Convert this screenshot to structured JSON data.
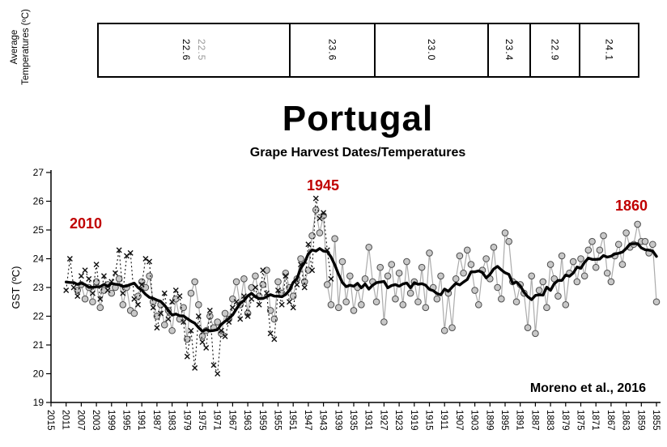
{
  "title": "Portugal",
  "avg_table": {
    "label_line1": "Average",
    "label_line2": "Temperatures (ºC)",
    "values": [
      "22.6",
      "22.5",
      "23.6",
      "23.0",
      "23.4",
      "22.9",
      "24.1"
    ]
  },
  "colors": {
    "annotation_red": "#c00000",
    "table_secondary_gray": "#999999",
    "series_line_gray": "#ababab",
    "marker_fill_gray": "#c8c8c8",
    "marker_stroke_gray": "#4d4d4d",
    "series_black": "#111111",
    "smooth_black": "#000000"
  },
  "chart_data": {
    "type": "line",
    "title": "Grape Harvest Dates/Temperatures",
    "xlabel": "",
    "ylabel": "GST (ºC)",
    "ylim": [
      19,
      27
    ],
    "x_reversed": true,
    "grid": false,
    "legend": "none",
    "y_ticks": [
      19,
      20,
      21,
      22,
      23,
      24,
      25,
      26,
      27
    ],
    "x_ticks": [
      2015,
      2011,
      2007,
      2003,
      1999,
      1995,
      1991,
      1987,
      1983,
      1979,
      1975,
      1971,
      1967,
      1963,
      1959,
      1955,
      1951,
      1947,
      1943,
      1939,
      1935,
      1931,
      1927,
      1923,
      1919,
      1915,
      1911,
      1907,
      1903,
      1899,
      1895,
      1891,
      1887,
      1883,
      1879,
      1875,
      1871,
      1867,
      1863,
      1859,
      1855
    ],
    "annotations": [
      {
        "text": "2010",
        "year": 2010
      },
      {
        "text": "1945",
        "year": 1945
      },
      {
        "text": "1860",
        "year": 1860
      }
    ],
    "credit": "Moreno et al., 2016",
    "smoothing": "9-year centered moving average (thick black line)",
    "series": [
      {
        "id": "observed-x",
        "marker": "x",
        "line": "dotted",
        "points": [
          [
            2011,
            22.9
          ],
          [
            2010,
            24.0
          ],
          [
            2009,
            23.0
          ],
          [
            2008,
            22.7
          ],
          [
            2007,
            23.4
          ],
          [
            2006,
            23.6
          ],
          [
            2005,
            23.3
          ],
          [
            2004,
            22.8
          ],
          [
            2003,
            23.8
          ],
          [
            2002,
            22.6
          ],
          [
            2001,
            23.4
          ],
          [
            2000,
            22.9
          ],
          [
            1999,
            23.2
          ],
          [
            1998,
            23.5
          ],
          [
            1997,
            24.3
          ],
          [
            1996,
            22.8
          ],
          [
            1995,
            24.1
          ],
          [
            1994,
            24.2
          ],
          [
            1993,
            22.6
          ],
          [
            1992,
            22.4
          ],
          [
            1991,
            23.1
          ],
          [
            1990,
            24.0
          ],
          [
            1989,
            23.9
          ],
          [
            1988,
            22.3
          ],
          [
            1987,
            21.6
          ],
          [
            1986,
            22.1
          ],
          [
            1985,
            22.8
          ],
          [
            1984,
            21.9
          ],
          [
            1983,
            22.5
          ],
          [
            1982,
            22.9
          ],
          [
            1981,
            22.7
          ],
          [
            1980,
            21.8
          ],
          [
            1979,
            20.6
          ],
          [
            1978,
            21.5
          ],
          [
            1977,
            20.2
          ],
          [
            1976,
            22.0
          ],
          [
            1975,
            21.1
          ],
          [
            1974,
            20.9
          ],
          [
            1973,
            22.2
          ],
          [
            1972,
            20.3
          ],
          [
            1971,
            20.0
          ],
          [
            1970,
            21.5
          ],
          [
            1969,
            21.3
          ],
          [
            1968,
            21.8
          ],
          [
            1967,
            22.3
          ],
          [
            1966,
            22.5
          ],
          [
            1965,
            21.9
          ],
          [
            1964,
            22.7
          ],
          [
            1963,
            22.0
          ],
          [
            1962,
            22.6
          ],
          [
            1961,
            23.0
          ],
          [
            1960,
            22.4
          ],
          [
            1959,
            23.6
          ],
          [
            1958,
            22.8
          ],
          [
            1957,
            21.4
          ],
          [
            1956,
            21.2
          ],
          [
            1955,
            22.9
          ],
          [
            1954,
            22.4
          ],
          [
            1953,
            23.4
          ],
          [
            1952,
            22.5
          ],
          [
            1951,
            22.3
          ],
          [
            1950,
            23.1
          ],
          [
            1949,
            23.8
          ],
          [
            1948,
            23.0
          ],
          [
            1947,
            24.5
          ],
          [
            1946,
            23.6
          ],
          [
            1945,
            26.1
          ],
          [
            1944,
            25.4
          ],
          [
            1943,
            25.6
          ],
          [
            1942,
            24.3
          ],
          [
            1941,
            23.3
          ]
        ]
      },
      {
        "id": "harvest-circles",
        "marker": "circle",
        "line": "solid",
        "points": [
          [
            2008,
            22.9
          ],
          [
            2007,
            23.1
          ],
          [
            2006,
            22.6
          ],
          [
            2005,
            23.0
          ],
          [
            2004,
            22.5
          ],
          [
            2003,
            23.2
          ],
          [
            2002,
            22.3
          ],
          [
            2001,
            22.9
          ],
          [
            2000,
            23.1
          ],
          [
            1999,
            22.8
          ],
          [
            1998,
            23.0
          ],
          [
            1997,
            23.3
          ],
          [
            1996,
            22.4
          ],
          [
            1995,
            23.0
          ],
          [
            1994,
            22.2
          ],
          [
            1993,
            22.1
          ],
          [
            1992,
            22.7
          ],
          [
            1991,
            23.2
          ],
          [
            1990,
            23.0
          ],
          [
            1989,
            23.4
          ],
          [
            1988,
            22.5
          ],
          [
            1987,
            22.0
          ],
          [
            1986,
            22.4
          ],
          [
            1985,
            21.7
          ],
          [
            1984,
            22.2
          ],
          [
            1983,
            21.5
          ],
          [
            1982,
            22.6
          ],
          [
            1981,
            21.9
          ],
          [
            1980,
            22.3
          ],
          [
            1979,
            21.2
          ],
          [
            1978,
            22.8
          ],
          [
            1977,
            23.2
          ],
          [
            1976,
            22.4
          ],
          [
            1975,
            21.3
          ],
          [
            1974,
            21.5
          ],
          [
            1973,
            22.0
          ],
          [
            1972,
            21.6
          ],
          [
            1971,
            21.8
          ],
          [
            1970,
            21.4
          ],
          [
            1969,
            22.1
          ],
          [
            1968,
            21.9
          ],
          [
            1967,
            22.6
          ],
          [
            1966,
            23.2
          ],
          [
            1965,
            22.4
          ],
          [
            1964,
            23.3
          ],
          [
            1963,
            22.1
          ],
          [
            1962,
            23.0
          ],
          [
            1961,
            23.4
          ],
          [
            1960,
            22.7
          ],
          [
            1959,
            23.1
          ],
          [
            1958,
            23.6
          ],
          [
            1957,
            22.2
          ],
          [
            1956,
            21.9
          ],
          [
            1955,
            23.2
          ],
          [
            1954,
            22.8
          ],
          [
            1953,
            23.5
          ],
          [
            1952,
            23.0
          ],
          [
            1951,
            22.7
          ],
          [
            1950,
            23.3
          ],
          [
            1949,
            24.0
          ],
          [
            1948,
            23.2
          ],
          [
            1947,
            23.6
          ],
          [
            1946,
            24.8
          ],
          [
            1945,
            25.7
          ],
          [
            1944,
            24.9
          ],
          [
            1943,
            25.5
          ],
          [
            1942,
            23.1
          ],
          [
            1941,
            22.4
          ],
          [
            1940,
            24.7
          ],
          [
            1939,
            22.3
          ],
          [
            1938,
            23.9
          ],
          [
            1937,
            22.5
          ],
          [
            1936,
            23.4
          ],
          [
            1935,
            22.2
          ],
          [
            1934,
            23.0
          ],
          [
            1933,
            22.4
          ],
          [
            1932,
            23.3
          ],
          [
            1931,
            24.4
          ],
          [
            1930,
            23.2
          ],
          [
            1929,
            22.5
          ],
          [
            1928,
            23.7
          ],
          [
            1927,
            21.8
          ],
          [
            1926,
            23.4
          ],
          [
            1925,
            23.8
          ],
          [
            1924,
            22.6
          ],
          [
            1923,
            23.5
          ],
          [
            1922,
            22.4
          ],
          [
            1921,
            23.9
          ],
          [
            1920,
            22.8
          ],
          [
            1919,
            23.2
          ],
          [
            1918,
            22.5
          ],
          [
            1917,
            23.7
          ],
          [
            1916,
            22.3
          ],
          [
            1915,
            24.2
          ],
          [
            1914,
            23.0
          ],
          [
            1913,
            22.6
          ],
          [
            1912,
            23.4
          ],
          [
            1911,
            21.5
          ],
          [
            1910,
            22.8
          ],
          [
            1909,
            21.6
          ],
          [
            1908,
            23.3
          ],
          [
            1907,
            24.1
          ],
          [
            1906,
            23.5
          ],
          [
            1905,
            24.3
          ],
          [
            1904,
            23.8
          ],
          [
            1903,
            22.9
          ],
          [
            1902,
            22.4
          ],
          [
            1901,
            23.6
          ],
          [
            1900,
            24.0
          ],
          [
            1899,
            23.3
          ],
          [
            1898,
            24.4
          ],
          [
            1897,
            23.0
          ],
          [
            1896,
            22.6
          ],
          [
            1895,
            24.9
          ],
          [
            1894,
            24.6
          ],
          [
            1893,
            23.2
          ],
          [
            1892,
            22.5
          ],
          [
            1891,
            23.1
          ],
          [
            1890,
            22.8
          ],
          [
            1889,
            21.6
          ],
          [
            1888,
            23.4
          ],
          [
            1887,
            21.4
          ],
          [
            1886,
            22.9
          ],
          [
            1885,
            23.2
          ],
          [
            1884,
            22.3
          ],
          [
            1883,
            23.8
          ],
          [
            1882,
            23.3
          ],
          [
            1881,
            22.7
          ],
          [
            1880,
            24.1
          ],
          [
            1879,
            22.4
          ],
          [
            1878,
            23.5
          ],
          [
            1877,
            23.9
          ],
          [
            1876,
            23.2
          ],
          [
            1875,
            24.0
          ],
          [
            1874,
            23.4
          ],
          [
            1873,
            24.3
          ],
          [
            1872,
            24.6
          ],
          [
            1871,
            23.7
          ],
          [
            1870,
            24.3
          ],
          [
            1869,
            24.8
          ],
          [
            1868,
            23.5
          ],
          [
            1867,
            23.2
          ],
          [
            1866,
            24.1
          ],
          [
            1865,
            24.5
          ],
          [
            1864,
            23.8
          ],
          [
            1863,
            24.9
          ],
          [
            1862,
            24.4
          ],
          [
            1861,
            24.5
          ],
          [
            1860,
            25.2
          ],
          [
            1859,
            24.6
          ],
          [
            1858,
            24.6
          ],
          [
            1857,
            24.2
          ],
          [
            1856,
            24.5
          ],
          [
            1855,
            22.5
          ]
        ]
      }
    ]
  }
}
